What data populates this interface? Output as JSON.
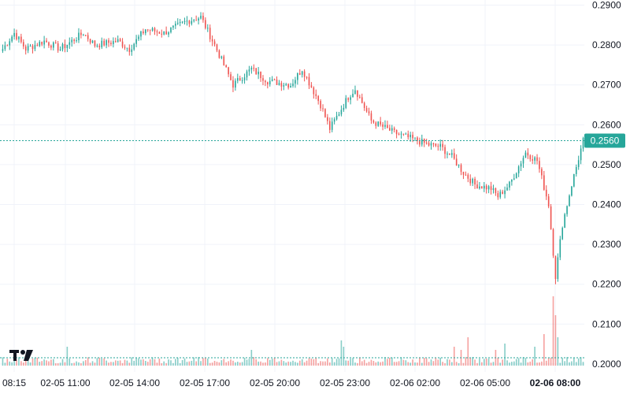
{
  "chart_data": {
    "type": "candlestick",
    "y_axis": {
      "min": 0.198,
      "max": 0.2905,
      "ticks": [
        "0.2900",
        "0.2800",
        "0.2700",
        "0.2600",
        "0.2500",
        "0.2400",
        "0.2300",
        "0.2200",
        "0.2100",
        "0.2000"
      ],
      "tick_values": [
        0.29,
        0.28,
        0.27,
        0.26,
        0.25,
        0.24,
        0.23,
        0.22,
        0.21,
        0.2
      ]
    },
    "x_axis": {
      "labels": [
        "08:15",
        "02-05 11:00",
        "02-05 14:00",
        "02-05 17:00",
        "02-05 20:00",
        "02-05 23:00",
        "02-06 02:00",
        "02-06 05:00",
        "02-06 08:00"
      ],
      "bold_last": true
    },
    "current_price": {
      "value": 0.256,
      "label": "0.2560",
      "color": "#26a69a"
    },
    "colors": {
      "up": "#26a69a",
      "down": "#ef5350",
      "grid": "#f0f3fa"
    },
    "grid": true,
    "volume_bars": true,
    "close_waypoints": [
      [
        0,
        0.279
      ],
      [
        5,
        0.283
      ],
      [
        10,
        0.279
      ],
      [
        18,
        0.281
      ],
      [
        25,
        0.279
      ],
      [
        35,
        0.283
      ],
      [
        40,
        0.28
      ],
      [
        50,
        0.281
      ],
      [
        55,
        0.279
      ],
      [
        62,
        0.284
      ],
      [
        70,
        0.283
      ],
      [
        80,
        0.286
      ],
      [
        86,
        0.287
      ],
      [
        92,
        0.28
      ],
      [
        100,
        0.27
      ],
      [
        108,
        0.274
      ],
      [
        115,
        0.271
      ],
      [
        125,
        0.27
      ],
      [
        130,
        0.274
      ],
      [
        138,
        0.265
      ],
      [
        142,
        0.259
      ],
      [
        150,
        0.267
      ],
      [
        153,
        0.269
      ],
      [
        160,
        0.261
      ],
      [
        170,
        0.258
      ],
      [
        180,
        0.256
      ],
      [
        185,
        0.255
      ],
      [
        190,
        0.2545
      ],
      [
        195,
        0.252
      ],
      [
        200,
        0.248
      ],
      [
        205,
        0.245
      ],
      [
        212,
        0.244
      ],
      [
        215,
        0.242
      ],
      [
        220,
        0.245
      ],
      [
        227,
        0.253
      ],
      [
        232,
        0.251
      ],
      [
        237,
        0.24
      ],
      [
        240,
        0.222
      ],
      [
        243,
        0.235
      ],
      [
        247,
        0.245
      ],
      [
        252,
        0.256
      ]
    ],
    "spike_wick_low": 0.22,
    "volume_spikes": [
      [
        28,
        6
      ],
      [
        108,
        5
      ],
      [
        147,
        8
      ],
      [
        148,
        6
      ],
      [
        196,
        6
      ],
      [
        199,
        5
      ],
      [
        202,
        9
      ],
      [
        214,
        5
      ],
      [
        218,
        7
      ],
      [
        231,
        6
      ],
      [
        235,
        10
      ],
      [
        239,
        22
      ],
      [
        240,
        16
      ],
      [
        241,
        9
      ]
    ]
  },
  "logo": {
    "text": "TV",
    "icon": "tradingview-logo-icon"
  }
}
